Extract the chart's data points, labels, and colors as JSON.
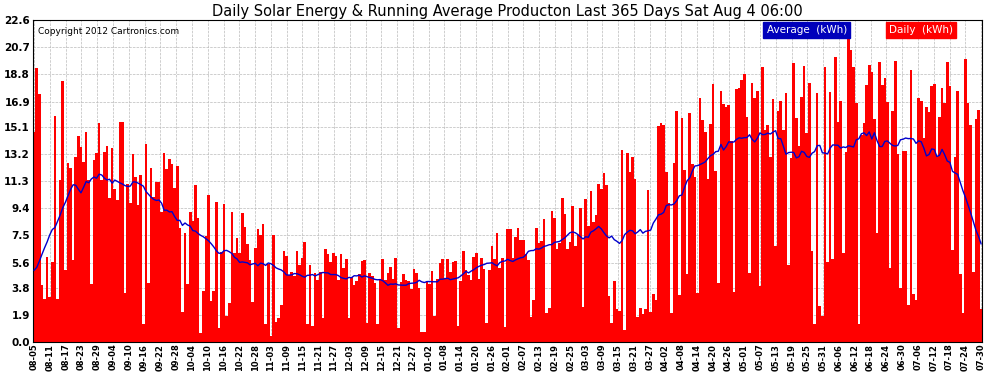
{
  "title": "Daily Solar Energy & Running Average Producton Last 365 Days Sat Aug 4 06:00",
  "copyright": "Copyright 2012 Cartronics.com",
  "yticks": [
    0.0,
    1.9,
    3.8,
    5.6,
    7.5,
    9.4,
    11.3,
    13.2,
    15.1,
    16.9,
    18.8,
    20.7,
    22.6
  ],
  "ymax": 22.6,
  "ymin": 0.0,
  "bar_color": "#FF0000",
  "avg_color": "#0000CC",
  "bg_color": "#FFFFFF",
  "grid_color": "#AAAAAA",
  "legend_avg_bg": "#0000BB",
  "legend_daily_bg": "#FF0000",
  "legend_text_color": "#FFFFFF",
  "xtick_labels": [
    "08-05",
    "08-11",
    "08-17",
    "08-23",
    "08-29",
    "09-04",
    "09-10",
    "09-16",
    "09-22",
    "09-28",
    "10-04",
    "10-10",
    "10-16",
    "10-22",
    "10-28",
    "11-03",
    "11-09",
    "11-15",
    "11-21",
    "11-27",
    "12-03",
    "12-09",
    "12-15",
    "12-21",
    "12-27",
    "01-02",
    "01-08",
    "01-14",
    "01-20",
    "01-26",
    "02-01",
    "02-07",
    "02-13",
    "02-19",
    "02-25",
    "03-03",
    "03-09",
    "03-15",
    "03-21",
    "03-27",
    "04-02",
    "04-08",
    "04-14",
    "04-20",
    "04-26",
    "05-01",
    "05-07",
    "05-13",
    "05-19",
    "05-25",
    "05-31",
    "06-06",
    "06-12",
    "06-18",
    "06-24",
    "06-30",
    "07-06",
    "07-12",
    "07-18",
    "07-24",
    "07-30"
  ],
  "n_bars": 365
}
